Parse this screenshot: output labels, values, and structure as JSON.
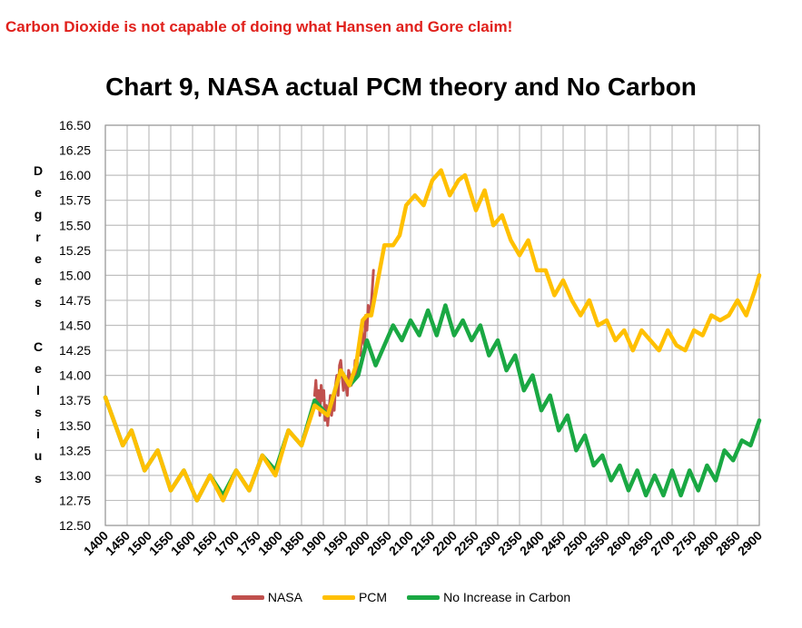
{
  "banner": "Carbon Dioxide is not capable of doing what Hansen and Gore claim!",
  "colors": {
    "banner": "#e0201b",
    "nasa": "#c0504d",
    "pcm": "#ffc000",
    "no_carbon": "#1aa843",
    "grid": "#bfbfbf"
  },
  "chart_data": {
    "type": "line",
    "title": "Chart 9, NASA actual PCM theory and No Carbon",
    "ylabel_chars": [
      "D",
      "e",
      "g",
      "r",
      "e",
      "e",
      "s",
      "",
      "C",
      "e",
      "l",
      "s",
      "i",
      "u",
      "s"
    ],
    "xlabel": "",
    "xlim": [
      1400,
      2900
    ],
    "ylim": [
      12.5,
      16.5
    ],
    "x_ticks": [
      1400,
      1450,
      1500,
      1550,
      1600,
      1650,
      1700,
      1750,
      1800,
      1850,
      1900,
      1950,
      2000,
      2050,
      2100,
      2150,
      2200,
      2250,
      2300,
      2350,
      2400,
      2450,
      2500,
      2550,
      2600,
      2650,
      2700,
      2750,
      2800,
      2850,
      2900
    ],
    "y_ticks": [
      "12.50",
      "12.75",
      "13.00",
      "13.25",
      "13.50",
      "13.75",
      "14.00",
      "14.25",
      "14.50",
      "14.75",
      "15.00",
      "15.25",
      "15.50",
      "15.75",
      "16.00",
      "16.25",
      "16.50"
    ],
    "grid": true,
    "legend_position": "bottom",
    "series": [
      {
        "name": "NASA",
        "color": "#c0504d",
        "x": [
          1880,
          1883,
          1886,
          1889,
          1892,
          1895,
          1898,
          1901,
          1904,
          1907,
          1910,
          1913,
          1916,
          1919,
          1922,
          1925,
          1928,
          1931,
          1934,
          1937,
          1940,
          1943,
          1946,
          1949,
          1952,
          1955,
          1958,
          1961,
          1964,
          1967,
          1970,
          1973,
          1976,
          1979,
          1982,
          1985,
          1988,
          1991,
          1994,
          1997,
          2000,
          2003,
          2006,
          2009,
          2012,
          2015
        ],
        "y": [
          13.8,
          13.95,
          13.7,
          13.85,
          13.6,
          13.9,
          13.75,
          13.85,
          13.55,
          13.7,
          13.5,
          13.65,
          13.8,
          13.6,
          13.75,
          13.65,
          13.9,
          14.0,
          13.8,
          14.1,
          14.15,
          14.0,
          13.85,
          13.95,
          13.9,
          13.8,
          14.05,
          14.0,
          13.9,
          13.95,
          13.95,
          14.15,
          14.0,
          14.2,
          14.3,
          14.2,
          14.45,
          14.35,
          14.3,
          14.6,
          14.45,
          14.7,
          14.6,
          14.65,
          14.85,
          15.05
        ]
      },
      {
        "name": "PCM",
        "color": "#ffc000",
        "x": [
          1400,
          1440,
          1460,
          1490,
          1520,
          1550,
          1580,
          1610,
          1640,
          1670,
          1700,
          1730,
          1760,
          1790,
          1820,
          1850,
          1880,
          1910,
          1940,
          1960,
          1975,
          1990,
          2000,
          2010,
          2025,
          2040,
          2060,
          2075,
          2090,
          2110,
          2130,
          2150,
          2170,
          2190,
          2210,
          2225,
          2250,
          2270,
          2290,
          2310,
          2330,
          2350,
          2370,
          2390,
          2410,
          2430,
          2450,
          2470,
          2490,
          2510,
          2530,
          2550,
          2570,
          2590,
          2610,
          2630,
          2650,
          2670,
          2690,
          2710,
          2730,
          2750,
          2770,
          2790,
          2810,
          2830,
          2850,
          2870,
          2890,
          2900
        ],
        "y": [
          13.78,
          13.3,
          13.45,
          13.05,
          13.25,
          12.85,
          13.05,
          12.75,
          13.0,
          12.75,
          13.05,
          12.85,
          13.2,
          13.0,
          13.45,
          13.3,
          13.7,
          13.6,
          14.05,
          13.9,
          14.1,
          14.55,
          14.6,
          14.6,
          14.95,
          15.3,
          15.3,
          15.4,
          15.7,
          15.8,
          15.7,
          15.95,
          16.05,
          15.8,
          15.95,
          16.0,
          15.65,
          15.85,
          15.5,
          15.6,
          15.35,
          15.2,
          15.35,
          15.05,
          15.05,
          14.8,
          14.95,
          14.75,
          14.6,
          14.75,
          14.5,
          14.55,
          14.35,
          14.45,
          14.25,
          14.45,
          14.35,
          14.25,
          14.45,
          14.3,
          14.25,
          14.45,
          14.4,
          14.6,
          14.55,
          14.6,
          14.75,
          14.6,
          14.85,
          15.0
        ]
      },
      {
        "name": "No Increase in Carbon",
        "color": "#1aa843",
        "x": [
          1400,
          1440,
          1460,
          1490,
          1520,
          1550,
          1580,
          1610,
          1640,
          1670,
          1700,
          1730,
          1760,
          1790,
          1820,
          1850,
          1880,
          1910,
          1940,
          1960,
          1980,
          2000,
          2020,
          2040,
          2060,
          2080,
          2100,
          2120,
          2140,
          2160,
          2180,
          2200,
          2220,
          2240,
          2260,
          2280,
          2300,
          2320,
          2340,
          2360,
          2380,
          2400,
          2420,
          2440,
          2460,
          2480,
          2500,
          2520,
          2540,
          2560,
          2580,
          2600,
          2620,
          2640,
          2660,
          2680,
          2700,
          2720,
          2740,
          2760,
          2780,
          2800,
          2820,
          2840,
          2860,
          2880,
          2900
        ],
        "y": [
          13.78,
          13.3,
          13.45,
          13.05,
          13.25,
          12.85,
          13.05,
          12.75,
          13.0,
          12.8,
          13.05,
          12.85,
          13.2,
          13.05,
          13.45,
          13.3,
          13.75,
          13.6,
          14.05,
          13.9,
          14.0,
          14.35,
          14.1,
          14.3,
          14.5,
          14.35,
          14.55,
          14.4,
          14.65,
          14.4,
          14.7,
          14.4,
          14.55,
          14.35,
          14.5,
          14.2,
          14.35,
          14.05,
          14.2,
          13.85,
          14.0,
          13.65,
          13.8,
          13.45,
          13.6,
          13.25,
          13.4,
          13.1,
          13.2,
          12.95,
          13.1,
          12.85,
          13.05,
          12.8,
          13.0,
          12.8,
          13.05,
          12.8,
          13.05,
          12.85,
          13.1,
          12.95,
          13.25,
          13.15,
          13.35,
          13.3,
          13.55
        ]
      }
    ]
  }
}
